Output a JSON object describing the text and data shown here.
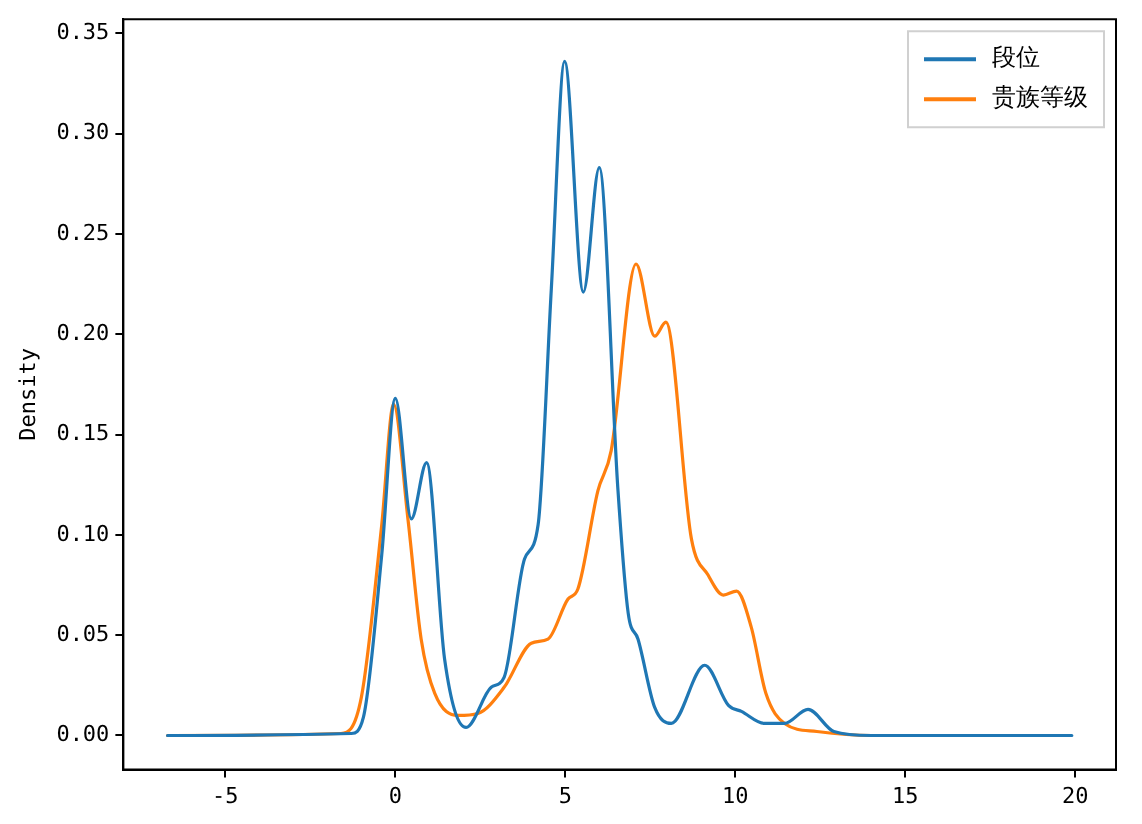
{
  "chart_data": {
    "type": "line",
    "ylabel": "Density",
    "xlim": [
      -8.0,
      21.2
    ],
    "xticks": [
      -5,
      0,
      5,
      10,
      15,
      20
    ],
    "ylim": [
      -0.017,
      0.357
    ],
    "yticks": [
      {
        "value": 0,
        "label": "0.00"
      },
      {
        "value": 0.05,
        "label": "0.05"
      },
      {
        "value": 0.1,
        "label": "0.10"
      },
      {
        "value": 0.15,
        "label": "0.15"
      },
      {
        "value": 0.2,
        "label": "0.20"
      },
      {
        "value": 0.25,
        "label": "0.25"
      },
      {
        "value": 0.3,
        "label": "0.30"
      },
      {
        "value": 0.35,
        "label": "0.35"
      }
    ],
    "grid": false,
    "legend": "top right",
    "marker": "none",
    "line_style": "solid",
    "series": [
      {
        "name": "段位",
        "color": "#1f77b4",
        "x": [
          -6.7,
          -1.3,
          -0.94,
          -0.4,
          0,
          0.47,
          0.92,
          1.45,
          2.08,
          2.82,
          3.2,
          3.8,
          4.2,
          4.59,
          4.98,
          5.53,
          6.0,
          6.55,
          6.85,
          7.14,
          7.63,
          8.12,
          9.1,
          9.8,
          10.18,
          10.86,
          11.45,
          12.14,
          12.9,
          14,
          19.9
        ],
        "values": [
          0,
          0.001,
          0.009,
          0.09,
          0.168,
          0.108,
          0.136,
          0.038,
          0.004,
          0.024,
          0.029,
          0.088,
          0.105,
          0.223,
          0.336,
          0.221,
          0.283,
          0.122,
          0.061,
          0.048,
          0.014,
          0.006,
          0.035,
          0.015,
          0.012,
          0.006,
          0.006,
          0.013,
          0.002,
          0,
          0
        ]
      },
      {
        "name": "贵族等级",
        "color": "#ff7f0e",
        "x": [
          -6.7,
          -1.6,
          -1.0,
          -0.4,
          -0.05,
          0.37,
          0.76,
          1.16,
          1.84,
          2.43,
          3.2,
          4.0,
          4.49,
          5.08,
          5.37,
          5.96,
          6.35,
          7.08,
          7.63,
          7.96,
          8.71,
          9.2,
          9.65,
          10.04,
          10.47,
          10.9,
          11.45,
          12.4,
          14,
          18.3
        ],
        "values": [
          0,
          0.001,
          0.019,
          0.105,
          0.165,
          0.108,
          0.048,
          0.021,
          0.01,
          0.011,
          0.024,
          0.046,
          0.048,
          0.068,
          0.073,
          0.122,
          0.142,
          0.235,
          0.199,
          0.206,
          0.098,
          0.08,
          0.07,
          0.072,
          0.054,
          0.021,
          0.006,
          0.002,
          0,
          0
        ]
      }
    ]
  }
}
